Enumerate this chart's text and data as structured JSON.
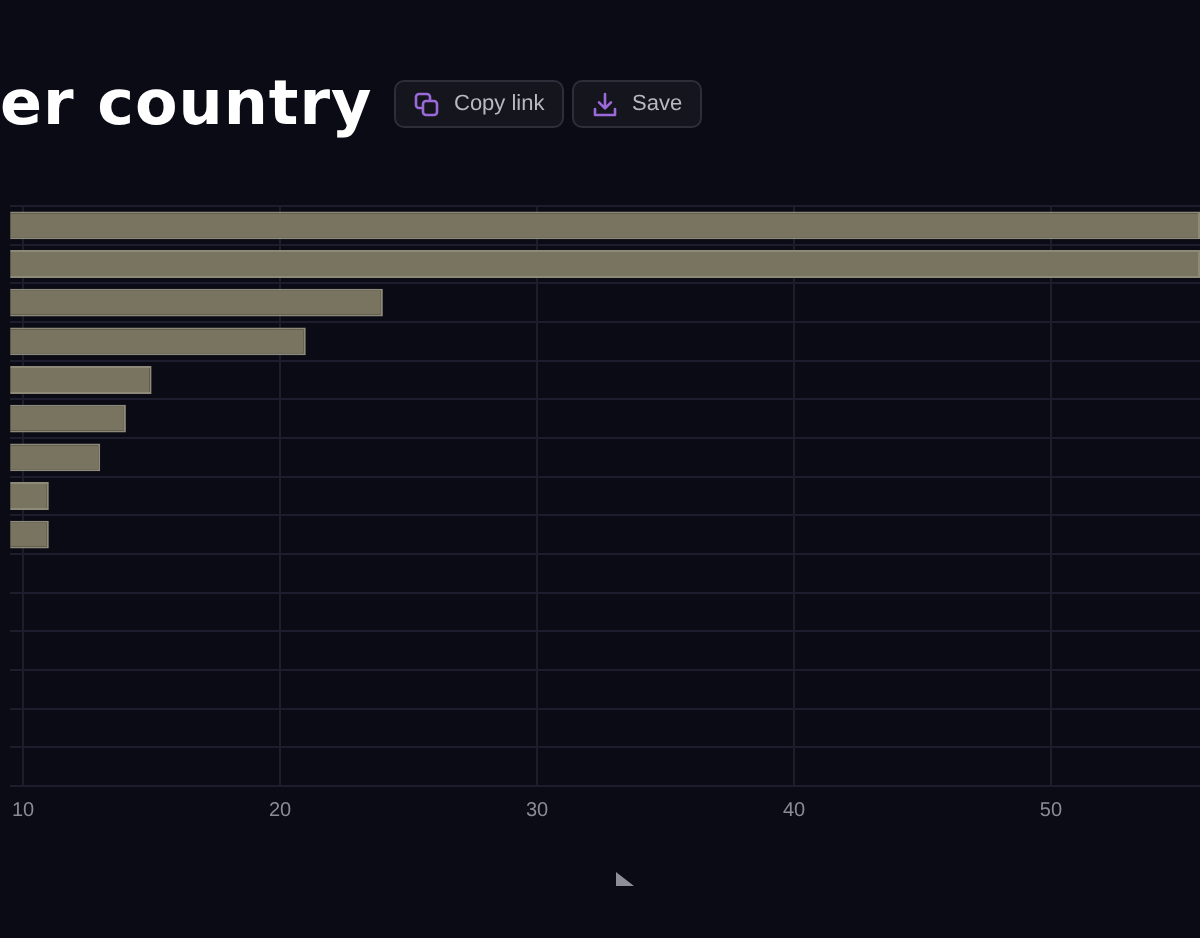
{
  "chart_data": {
    "type": "bar",
    "title": "er country",
    "orientation": "horizontal",
    "categories": [
      null,
      null,
      null,
      null,
      null,
      null,
      null,
      null,
      null,
      null,
      null,
      null,
      null,
      null,
      null
    ],
    "values": [
      55.8,
      55.8,
      24,
      21,
      15,
      14,
      13,
      11,
      11,
      null,
      null,
      null,
      null,
      null,
      null
    ],
    "color": "#78745f",
    "xlim": [
      9.5,
      55.8
    ],
    "xticks": [
      10,
      20,
      30,
      40,
      50
    ],
    "grid": true,
    "tick_labels": "x",
    "annotations": [
      "Copy link",
      "Save"
    ]
  }
}
